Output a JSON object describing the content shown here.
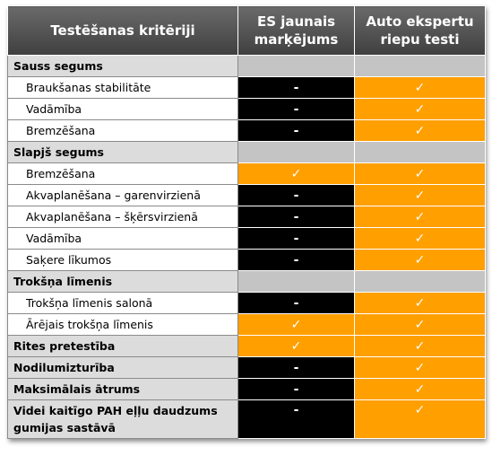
{
  "header": {
    "criteria": "Testēšanas kritēriji",
    "es": "ES jaunais marķējums",
    "auto": "Auto ekspertu riepu testi"
  },
  "rows": [
    {
      "label": "Sauss segums",
      "kind": "section"
    },
    {
      "label": "Braukšanas stabilitāte",
      "kind": "sub",
      "es": {
        "text": "-",
        "color": "#000000"
      },
      "auto": {
        "text": "✓",
        "color": "#ff9f00"
      }
    },
    {
      "label": "Vadāmība",
      "kind": "sub",
      "es": {
        "text": "-",
        "color": "#000000"
      },
      "auto": {
        "text": "✓",
        "color": "#ff9f00"
      }
    },
    {
      "label": "Bremzēšana",
      "kind": "sub",
      "es": {
        "text": "-",
        "color": "#000000"
      },
      "auto": {
        "text": "✓",
        "color": "#ff9f00"
      }
    },
    {
      "label": "Slapjš segums",
      "kind": "section"
    },
    {
      "label": "Bremzēšana",
      "kind": "sub",
      "es": {
        "text": "✓",
        "color": "#ff9f00"
      },
      "auto": {
        "text": "✓",
        "color": "#ff9f00"
      }
    },
    {
      "label": "Akvaplanēšana – garenvirzienā",
      "kind": "sub",
      "es": {
        "text": "-",
        "color": "#000000"
      },
      "auto": {
        "text": "✓",
        "color": "#ff9f00"
      }
    },
    {
      "label": "Akvaplanēšana – šķērsvirzienā",
      "kind": "sub",
      "es": {
        "text": "-",
        "color": "#000000"
      },
      "auto": {
        "text": "✓",
        "color": "#ff9f00"
      }
    },
    {
      "label": "Vadāmība",
      "kind": "sub",
      "es": {
        "text": "-",
        "color": "#000000"
      },
      "auto": {
        "text": "✓",
        "color": "#ff9f00"
      }
    },
    {
      "label": "Saķere līkumos",
      "kind": "sub",
      "es": {
        "text": "-",
        "color": "#000000"
      },
      "auto": {
        "text": "✓",
        "color": "#ff9f00"
      }
    },
    {
      "label": "Trokšņa līmenis",
      "kind": "section"
    },
    {
      "label": "Trokšņa līmenis salonā",
      "kind": "sub",
      "es": {
        "text": "-",
        "color": "#000000"
      },
      "auto": {
        "text": "✓",
        "color": "#ff9f00"
      }
    },
    {
      "label": "Ārējais trokšņa līmenis",
      "kind": "sub",
      "es": {
        "text": "✓",
        "color": "#ff9f00"
      },
      "auto": {
        "text": "✓",
        "color": "#ff9f00"
      }
    },
    {
      "label": "Rites pretestība",
      "kind": "item",
      "es": {
        "text": "✓",
        "color": "#ff9f00"
      },
      "auto": {
        "text": "✓",
        "color": "#ff9f00"
      }
    },
    {
      "label": "Nodilumizturība",
      "kind": "item",
      "es": {
        "text": "-",
        "color": "#000000"
      },
      "auto": {
        "text": "✓",
        "color": "#ff9f00"
      }
    },
    {
      "label": "Maksimālais ātrums",
      "kind": "item",
      "es": {
        "text": "-",
        "color": "#000000"
      },
      "auto": {
        "text": "✓",
        "color": "#ff9f00"
      }
    },
    {
      "label": "Videi kaitīgo PAH eļļu daudzums gumijas sastāvā",
      "kind": "item",
      "es": {
        "text": "-",
        "color": "#000000"
      },
      "auto": {
        "text": "✓",
        "color": "#ff9f00"
      }
    }
  ]
}
